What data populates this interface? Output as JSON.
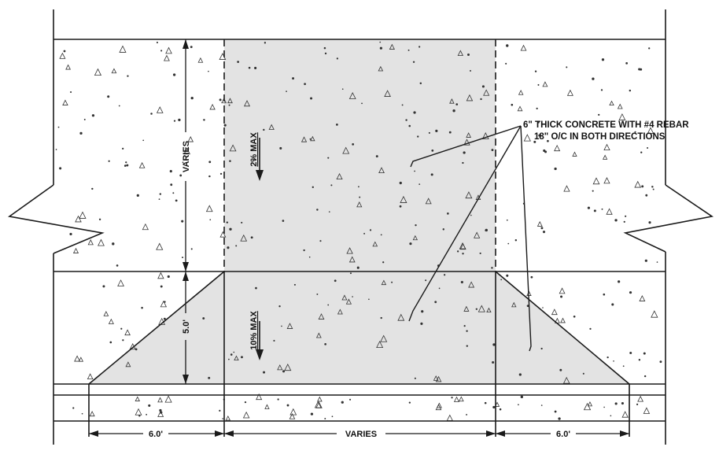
{
  "note": {
    "line1": "6\" THICK CONCRETE WITH #4 REBAR",
    "line2": "18\" O/C IN BOTH DIRECTIONS"
  },
  "dimensions": {
    "varies_vertical": "VARIES",
    "slope_upper": "2% MAX",
    "slope_lower": "10% MAX",
    "flare_height": "5.0'",
    "flare_left": "6.0'",
    "flare_right": "6.0'",
    "driveway_width": "VARIES"
  },
  "colors": {
    "driveway_fill": "#e3e3e3",
    "linework": "#1a1a1a",
    "aggregate": "#333333"
  }
}
